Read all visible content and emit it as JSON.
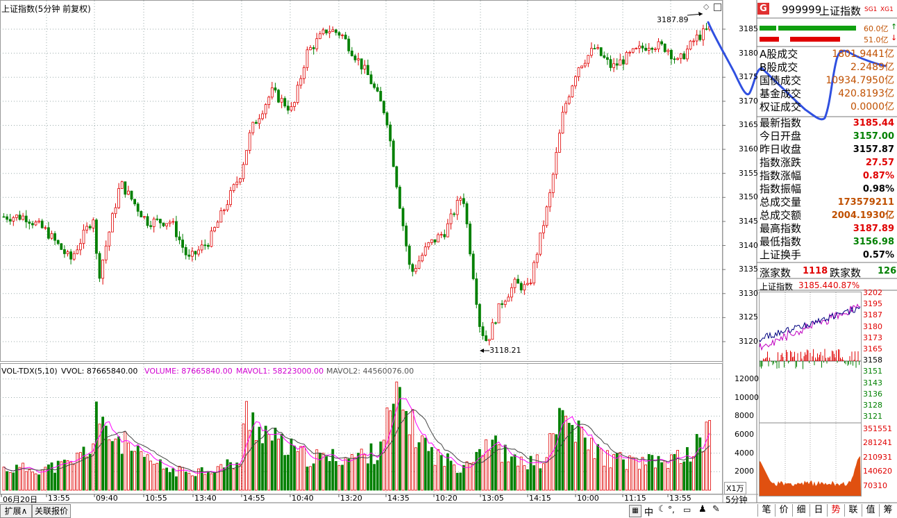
{
  "main_chart": {
    "title": "上证指数(5分钟 前复权)",
    "high_label": "3187.89",
    "low_label": "3118.21",
    "price_axis": [
      "3185",
      "3180",
      "3175",
      "3170",
      "3165",
      "3160",
      "3155",
      "3150",
      "3145",
      "3140",
      "3135",
      "3130",
      "3125",
      "3120"
    ],
    "price_range": [
      3116,
      3190
    ]
  },
  "volume_chart": {
    "legend_vol_tdx": "VOL-TDX(5,10)",
    "legend_vvol": "VVOL: 87665840.00",
    "legend_volume": "VOLUME: 87665840.00",
    "legend_mavol1": "MAVOL1: 58223000.00",
    "legend_mavol2": "MAVOL2: 44560076.00",
    "axis": [
      "12000",
      "10000",
      "8000",
      "6000",
      "4000",
      "2000"
    ],
    "unit": "X1万",
    "colors": {
      "volume": "#ff00ff",
      "mavol1": "#ff00ff",
      "mavol2": "#000000",
      "up": "#e00000",
      "down": "#008000"
    }
  },
  "time_axis": [
    "06月20日",
    "13:55",
    "09:40",
    "10:55",
    "13:40",
    "14:55",
    "10:40",
    "13:20",
    "14:35",
    "10:20",
    "13:05",
    "14:15",
    "10:00",
    "11:15",
    "13:55"
  ],
  "period_label": "5分钟",
  "bottom_tabs": {
    "expand": "扩展∧",
    "related": "关联报价"
  },
  "right_panel": {
    "badge": "G",
    "code": "999999",
    "name": "上证指数",
    "sg": "SG1",
    "xg": "XG1",
    "bar_top_value": "60.0亿",
    "bar_bottom_value": "51.0亿",
    "turnover_rows": [
      {
        "label": "A股成交",
        "value": "1801.9441亿"
      },
      {
        "label": "B股成交",
        "value": "2.2489亿"
      },
      {
        "label": "国债成交",
        "value": "10934.7950亿"
      },
      {
        "label": "基金成交",
        "value": "420.8193亿"
      },
      {
        "label": "权证成交",
        "value": "0.0000亿"
      }
    ],
    "stat_rows": [
      {
        "label": "最新指数",
        "value": "3185.44",
        "color": "#e00000"
      },
      {
        "label": "今日开盘",
        "value": "3157.00",
        "color": "#008000"
      },
      {
        "label": "昨日收盘",
        "value": "3157.87",
        "color": "#000000"
      },
      {
        "label": "指数涨跌",
        "value": "27.57",
        "color": "#e00000"
      },
      {
        "label": "指数涨幅",
        "value": "0.87%",
        "color": "#e00000"
      },
      {
        "label": "指数振幅",
        "value": "0.98%",
        "color": "#000000"
      },
      {
        "label": "总成交量",
        "value": "173579211",
        "color": "#c05000"
      },
      {
        "label": "总成交额",
        "value": "2004.1930亿",
        "color": "#c05000"
      },
      {
        "label": "最高指数",
        "value": "3187.89",
        "color": "#e00000"
      },
      {
        "label": "最低指数",
        "value": "3156.98",
        "color": "#008000"
      },
      {
        "label": "上证换手",
        "value": "0.57%",
        "color": "#000000"
      }
    ],
    "advance_label": "涨家数",
    "advance_value": "1118",
    "decline_label": "跌家数",
    "decline_value": "126",
    "mini_title": "上证指数",
    "mini_value": "3185.44",
    "mini_pct": "0.87%",
    "mini_price_axis": [
      "3202",
      "3195",
      "3187",
      "3180",
      "3173",
      "3165",
      "3158",
      "3151",
      "3143",
      "3136",
      "3128",
      "3121"
    ],
    "mini_vol_axis": [
      "351551",
      "281241",
      "210931",
      "140620",
      "70310"
    ],
    "tabs": [
      "笔",
      "价",
      "细",
      "日",
      "势",
      "联",
      "值",
      "筹"
    ],
    "active_tab": "势"
  },
  "status_icons": [
    "calc-icon",
    "chinese-icon",
    "moon-icon",
    "keyboard-icon",
    "user-icon",
    "menu-icon",
    "settings-icon"
  ],
  "status_zh": "中"
}
